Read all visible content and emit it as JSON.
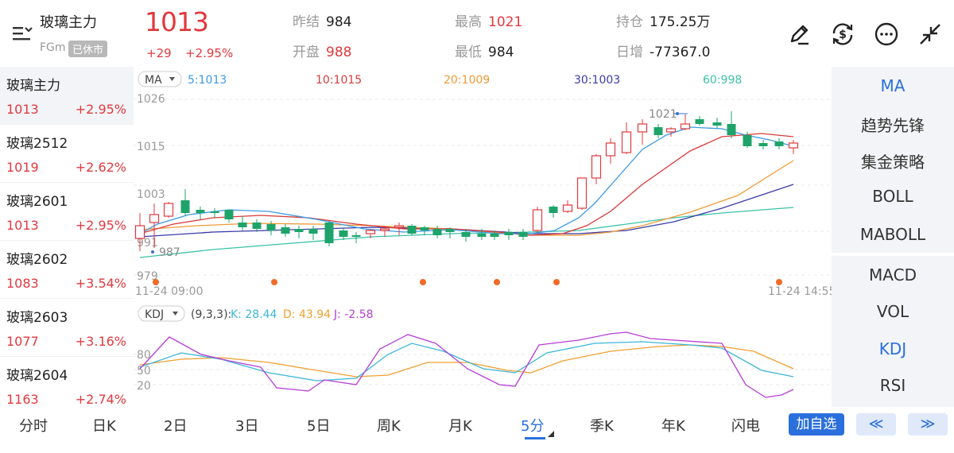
{
  "header": {
    "name": "玻璃主力",
    "code": "FGm",
    "status": "已休市",
    "price": "1013",
    "change": "+29",
    "change_pct": "+2.95%",
    "stats": {
      "prev_close_label": "昨结",
      "prev_close": "984",
      "open_label": "开盘",
      "open": "988",
      "high_label": "最高",
      "high": "1021",
      "low_label": "最低",
      "low": "984",
      "oi_label": "持仓",
      "oi": "175.25万",
      "oi_change_label": "日增",
      "oi_change": "-77367.0"
    },
    "icons": [
      "pen-icon",
      "currency-exchange-icon",
      "more-icon",
      "collapse-icon"
    ]
  },
  "sidebar": {
    "items": [
      {
        "name": "玻璃主力",
        "price": "1013",
        "pct": "+2.95%"
      },
      {
        "name": "玻璃2512",
        "price": "1019",
        "pct": "+2.62%"
      },
      {
        "name": "玻璃2601",
        "price": "1013",
        "pct": "+2.95%"
      },
      {
        "name": "玻璃2602",
        "price": "1083",
        "pct": "+3.54%"
      },
      {
        "name": "玻璃2603",
        "price": "1077",
        "pct": "+3.16%"
      },
      {
        "name": "玻璃2604",
        "price": "1163",
        "pct": "+2.74%"
      }
    ]
  },
  "right_panel": {
    "main_indicators": [
      "MA",
      "趋势先锋",
      "集金策略",
      "BOLL",
      "MABOLL"
    ],
    "sub_indicators": [
      "MACD",
      "VOL",
      "KDJ",
      "RSI"
    ]
  },
  "chart": {
    "ma_selector": "MA",
    "ma_legend": [
      {
        "label": "5:1013",
        "color": "#3b9ae6"
      },
      {
        "label": "10:1015",
        "color": "#d83a3a"
      },
      {
        "label": "20:1009",
        "color": "#f09a36"
      },
      {
        "label": "30:1003",
        "color": "#3a3aa8"
      },
      {
        "label": "60:998",
        "color": "#3cc2a6"
      }
    ],
    "price_axis": [
      "1026",
      "1015",
      "1003",
      "991",
      "979"
    ],
    "high_marker": "1021",
    "low_marker": "987",
    "time_start": "11-24 09:00",
    "time_end": "11-24 14:55",
    "kdj_selector": "KDJ",
    "kdj_params": "(9,3,3):",
    "kdj_k": "K: 28.44",
    "kdj_d": "D: 43.94",
    "kdj_j": "J: -2.58",
    "kdj_axis": [
      "80",
      "50",
      "20"
    ],
    "colors": {
      "up": "#e0393e",
      "down": "#1ea36a",
      "k": "#3cb6d8",
      "d": "#f0a030",
      "j": "#b63ed6"
    }
  },
  "bottom_bar": {
    "tabs": [
      "分时",
      "日K",
      "2日",
      "3日",
      "5日",
      "周K",
      "月K",
      "5分",
      "季K",
      "年K",
      "闪电"
    ],
    "active_tab": "5分",
    "add_watch": "加自选",
    "prev": "≪",
    "next": "≫"
  }
}
